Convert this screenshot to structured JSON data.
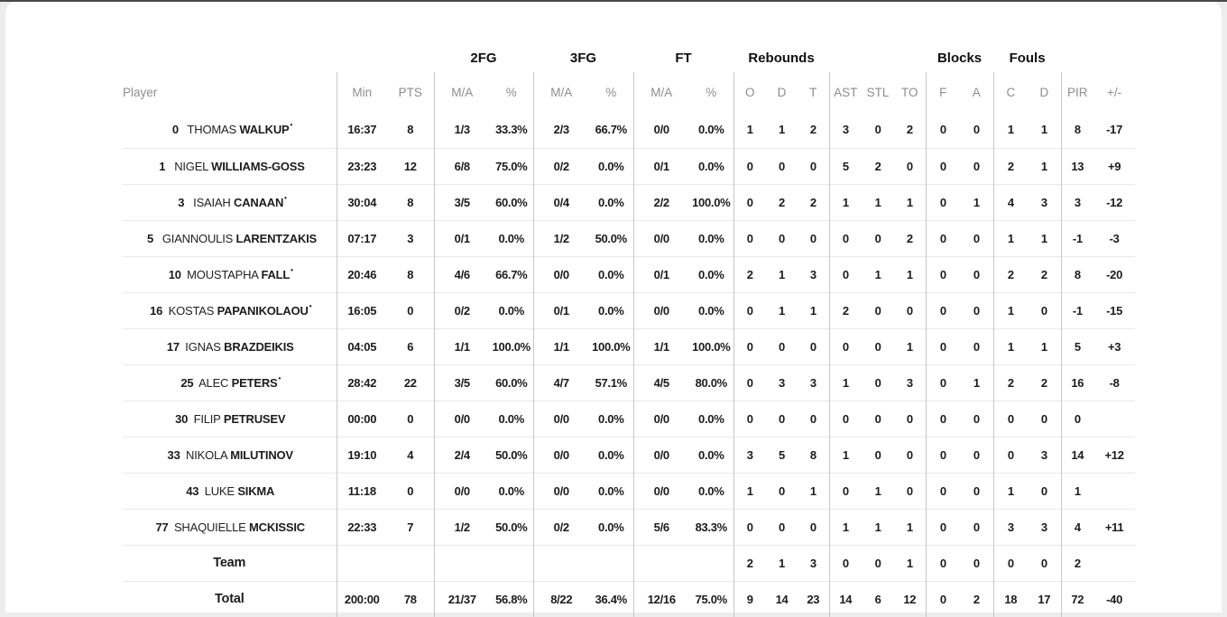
{
  "colors": {
    "page_bg": "#ededee",
    "card_bg": "#ffffff",
    "top_line": "#4a4a4e",
    "row_border": "#e9e9ea",
    "group_divider": "#c7c7ca",
    "header_text": "#8d8d92",
    "data_text": "#1c1c1e"
  },
  "table": {
    "groups": {
      "fg2": "2FG",
      "fg3": "3FG",
      "ft": "FT",
      "rebounds": "Rebounds",
      "blocks": "Blocks",
      "fouls": "Fouls"
    },
    "columns": {
      "player": "Player",
      "min": "Min",
      "pts": "PTS",
      "ma": "M/A",
      "pct": "%",
      "o": "O",
      "d": "D",
      "t": "T",
      "ast": "AST",
      "stl": "STL",
      "to": "TO",
      "f": "F",
      "a": "A",
      "c": "C",
      "dd": "D",
      "pir": "PIR",
      "pm": "+/-"
    },
    "starter_marker": "•",
    "players": [
      {
        "num": "0",
        "first": "THOMAS",
        "last": "WALKUP",
        "starter": true,
        "min": "16:37",
        "pts": "8",
        "fg2_ma": "1/3",
        "fg2_pct": "33.3%",
        "fg3_ma": "2/3",
        "fg3_pct": "66.7%",
        "ft_ma": "0/0",
        "ft_pct": "0.0%",
        "reb_o": "1",
        "reb_d": "1",
        "reb_t": "2",
        "ast": "3",
        "stl": "0",
        "to": "2",
        "blk_f": "0",
        "blk_a": "0",
        "foul_c": "1",
        "foul_d": "1",
        "pir": "8",
        "pm": "-17"
      },
      {
        "num": "1",
        "first": "NIGEL",
        "last": "WILLIAMS-GOSS",
        "starter": false,
        "min": "23:23",
        "pts": "12",
        "fg2_ma": "6/8",
        "fg2_pct": "75.0%",
        "fg3_ma": "0/2",
        "fg3_pct": "0.0%",
        "ft_ma": "0/1",
        "ft_pct": "0.0%",
        "reb_o": "0",
        "reb_d": "0",
        "reb_t": "0",
        "ast": "5",
        "stl": "2",
        "to": "0",
        "blk_f": "0",
        "blk_a": "0",
        "foul_c": "2",
        "foul_d": "1",
        "pir": "13",
        "pm": "+9"
      },
      {
        "num": "3",
        "first": "ISAIAH",
        "last": "CANAAN",
        "starter": true,
        "min": "30:04",
        "pts": "8",
        "fg2_ma": "3/5",
        "fg2_pct": "60.0%",
        "fg3_ma": "0/4",
        "fg3_pct": "0.0%",
        "ft_ma": "2/2",
        "ft_pct": "100.0%",
        "reb_o": "0",
        "reb_d": "2",
        "reb_t": "2",
        "ast": "1",
        "stl": "1",
        "to": "1",
        "blk_f": "0",
        "blk_a": "1",
        "foul_c": "4",
        "foul_d": "3",
        "pir": "3",
        "pm": "-12"
      },
      {
        "num": "5",
        "first": "GIANNOULIS",
        "last": "LARENTZAKIS",
        "starter": false,
        "min": "07:17",
        "pts": "3",
        "fg2_ma": "0/1",
        "fg2_pct": "0.0%",
        "fg3_ma": "1/2",
        "fg3_pct": "50.0%",
        "ft_ma": "0/0",
        "ft_pct": "0.0%",
        "reb_o": "0",
        "reb_d": "0",
        "reb_t": "0",
        "ast": "0",
        "stl": "0",
        "to": "2",
        "blk_f": "0",
        "blk_a": "0",
        "foul_c": "1",
        "foul_d": "1",
        "pir": "-1",
        "pm": "-3"
      },
      {
        "num": "10",
        "first": "MOUSTAPHA",
        "last": "FALL",
        "starter": true,
        "min": "20:46",
        "pts": "8",
        "fg2_ma": "4/6",
        "fg2_pct": "66.7%",
        "fg3_ma": "0/0",
        "fg3_pct": "0.0%",
        "ft_ma": "0/1",
        "ft_pct": "0.0%",
        "reb_o": "2",
        "reb_d": "1",
        "reb_t": "3",
        "ast": "0",
        "stl": "1",
        "to": "1",
        "blk_f": "0",
        "blk_a": "0",
        "foul_c": "2",
        "foul_d": "2",
        "pir": "8",
        "pm": "-20"
      },
      {
        "num": "16",
        "first": "KOSTAS",
        "last": "PAPANIKOLAOU",
        "starter": true,
        "min": "16:05",
        "pts": "0",
        "fg2_ma": "0/2",
        "fg2_pct": "0.0%",
        "fg3_ma": "0/1",
        "fg3_pct": "0.0%",
        "ft_ma": "0/0",
        "ft_pct": "0.0%",
        "reb_o": "0",
        "reb_d": "1",
        "reb_t": "1",
        "ast": "2",
        "stl": "0",
        "to": "0",
        "blk_f": "0",
        "blk_a": "0",
        "foul_c": "1",
        "foul_d": "0",
        "pir": "-1",
        "pm": "-15"
      },
      {
        "num": "17",
        "first": "IGNAS",
        "last": "BRAZDEIKIS",
        "starter": false,
        "min": "04:05",
        "pts": "6",
        "fg2_ma": "1/1",
        "fg2_pct": "100.0%",
        "fg3_ma": "1/1",
        "fg3_pct": "100.0%",
        "ft_ma": "1/1",
        "ft_pct": "100.0%",
        "reb_o": "0",
        "reb_d": "0",
        "reb_t": "0",
        "ast": "0",
        "stl": "0",
        "to": "1",
        "blk_f": "0",
        "blk_a": "0",
        "foul_c": "1",
        "foul_d": "1",
        "pir": "5",
        "pm": "+3"
      },
      {
        "num": "25",
        "first": "ALEC",
        "last": "PETERS",
        "starter": true,
        "min": "28:42",
        "pts": "22",
        "fg2_ma": "3/5",
        "fg2_pct": "60.0%",
        "fg3_ma": "4/7",
        "fg3_pct": "57.1%",
        "ft_ma": "4/5",
        "ft_pct": "80.0%",
        "reb_o": "0",
        "reb_d": "3",
        "reb_t": "3",
        "ast": "1",
        "stl": "0",
        "to": "3",
        "blk_f": "0",
        "blk_a": "1",
        "foul_c": "2",
        "foul_d": "2",
        "pir": "16",
        "pm": "-8"
      },
      {
        "num": "30",
        "first": "FILIP",
        "last": "PETRUSEV",
        "starter": false,
        "min": "00:00",
        "pts": "0",
        "fg2_ma": "0/0",
        "fg2_pct": "0.0%",
        "fg3_ma": "0/0",
        "fg3_pct": "0.0%",
        "ft_ma": "0/0",
        "ft_pct": "0.0%",
        "reb_o": "0",
        "reb_d": "0",
        "reb_t": "0",
        "ast": "0",
        "stl": "0",
        "to": "0",
        "blk_f": "0",
        "blk_a": "0",
        "foul_c": "0",
        "foul_d": "0",
        "pir": "0",
        "pm": ""
      },
      {
        "num": "33",
        "first": "NIKOLA",
        "last": "MILUTINOV",
        "starter": false,
        "min": "19:10",
        "pts": "4",
        "fg2_ma": "2/4",
        "fg2_pct": "50.0%",
        "fg3_ma": "0/0",
        "fg3_pct": "0.0%",
        "ft_ma": "0/0",
        "ft_pct": "0.0%",
        "reb_o": "3",
        "reb_d": "5",
        "reb_t": "8",
        "ast": "1",
        "stl": "0",
        "to": "0",
        "blk_f": "0",
        "blk_a": "0",
        "foul_c": "0",
        "foul_d": "3",
        "pir": "14",
        "pm": "+12"
      },
      {
        "num": "43",
        "first": "LUKE",
        "last": "SIKMA",
        "starter": false,
        "min": "11:18",
        "pts": "0",
        "fg2_ma": "0/0",
        "fg2_pct": "0.0%",
        "fg3_ma": "0/0",
        "fg3_pct": "0.0%",
        "ft_ma": "0/0",
        "ft_pct": "0.0%",
        "reb_o": "1",
        "reb_d": "0",
        "reb_t": "1",
        "ast": "0",
        "stl": "1",
        "to": "0",
        "blk_f": "0",
        "blk_a": "0",
        "foul_c": "1",
        "foul_d": "0",
        "pir": "1",
        "pm": ""
      },
      {
        "num": "77",
        "first": "SHAQUIELLE",
        "last": "MCKISSIC",
        "starter": false,
        "min": "22:33",
        "pts": "7",
        "fg2_ma": "1/2",
        "fg2_pct": "50.0%",
        "fg3_ma": "0/2",
        "fg3_pct": "0.0%",
        "ft_ma": "5/6",
        "ft_pct": "83.3%",
        "reb_o": "0",
        "reb_d": "0",
        "reb_t": "0",
        "ast": "1",
        "stl": "1",
        "to": "1",
        "blk_f": "0",
        "blk_a": "0",
        "foul_c": "3",
        "foul_d": "3",
        "pir": "4",
        "pm": "+11"
      }
    ],
    "team_row": {
      "label": "Team",
      "min": "",
      "pts": "",
      "fg2_ma": "",
      "fg2_pct": "",
      "fg3_ma": "",
      "fg3_pct": "",
      "ft_ma": "",
      "ft_pct": "",
      "reb_o": "2",
      "reb_d": "1",
      "reb_t": "3",
      "ast": "0",
      "stl": "0",
      "to": "1",
      "blk_f": "0",
      "blk_a": "0",
      "foul_c": "0",
      "foul_d": "0",
      "pir": "2",
      "pm": ""
    },
    "total_row": {
      "label": "Total",
      "min": "200:00",
      "pts": "78",
      "fg2_ma": "21/37",
      "fg2_pct": "56.8%",
      "fg3_ma": "8/22",
      "fg3_pct": "36.4%",
      "ft_ma": "12/16",
      "ft_pct": "75.0%",
      "reb_o": "9",
      "reb_d": "14",
      "reb_t": "23",
      "ast": "14",
      "stl": "6",
      "to": "12",
      "blk_f": "0",
      "blk_a": "2",
      "foul_c": "18",
      "foul_d": "17",
      "pir": "72",
      "pm": "-40"
    }
  }
}
